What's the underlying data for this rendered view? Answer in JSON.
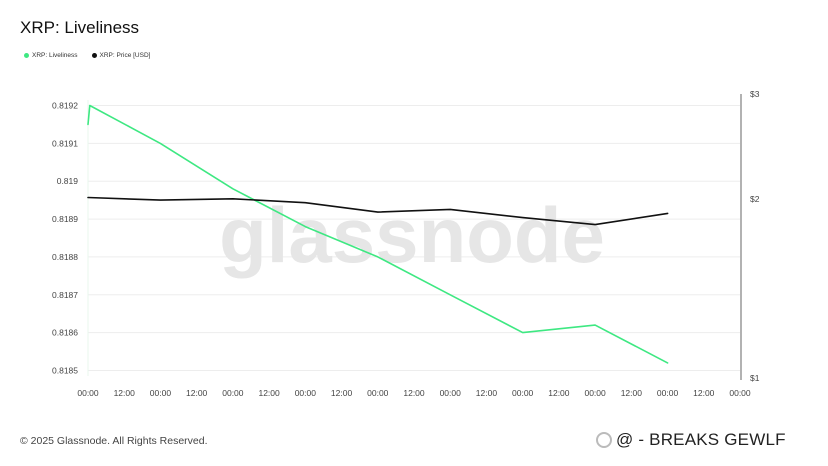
{
  "header": {
    "title": "XRP: Liveliness"
  },
  "legend": {
    "items": [
      {
        "label": "XRP: Liveliness",
        "color": "#3ee882"
      },
      {
        "label": "XRP: Price [USD]",
        "color": "#111111"
      }
    ]
  },
  "watermark": "glassnode",
  "footer": {
    "copyright": "© 2025 Glassnode. All Rights Reserved.",
    "source": "@ - BREAKS GEWLF"
  },
  "chart_data": {
    "type": "line",
    "title": "XRP: Liveliness",
    "x_tick_labels": [
      "00:00",
      "12:00",
      "00:00",
      "12:00",
      "00:00",
      "12:00",
      "00:00",
      "12:00",
      "00:00",
      "12:00",
      "00:00",
      "12:00",
      "00:00",
      "12:00",
      "00:00",
      "12:00",
      "00:00",
      "12:00",
      "00:00"
    ],
    "y_left": {
      "ticks": [
        "0.8185",
        "0.8186",
        "0.8187",
        "0.8188",
        "0.8189",
        "0.819",
        "0.8191",
        "0.8192"
      ],
      "range": [
        0.8185,
        0.8192
      ]
    },
    "y_right": {
      "ticks": [
        "$1",
        "$2",
        "$3"
      ],
      "scale": "log",
      "range": [
        1,
        3
      ]
    },
    "series": [
      {
        "name": "XRP: Liveliness",
        "axis": "left",
        "color": "#3ee882",
        "x_index": [
          0,
          0.05,
          2,
          4,
          6,
          8,
          10,
          12,
          14,
          16
        ],
        "values": [
          0.81915,
          0.8192,
          0.8191,
          0.81898,
          0.81888,
          0.8188,
          0.8187,
          0.8186,
          0.81862,
          0.81852
        ]
      },
      {
        "name": "XRP: Price [USD]",
        "axis": "right",
        "color": "#111111",
        "x_index": [
          0,
          2,
          4,
          6,
          8,
          10,
          12,
          14,
          16
        ],
        "values": [
          2.01,
          1.99,
          2.0,
          1.97,
          1.9,
          1.92,
          1.86,
          1.81,
          1.89
        ]
      }
    ]
  }
}
